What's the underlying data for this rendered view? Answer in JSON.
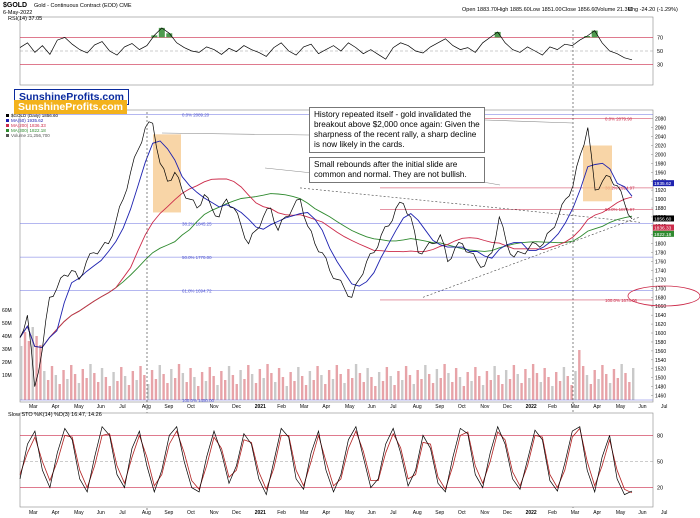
{
  "header": {
    "symbol": "$GOLD",
    "description": "Gold - Continuous Contract (EOD) CME",
    "date": "6-May-2022",
    "open": "Open 1883.70",
    "high": "High 1885.60",
    "low": "Low 1851.00",
    "close": "Close 1856.60",
    "volume": "Volume 21.3M",
    "chg": "Chg -24.20 (-1.29%)"
  },
  "watermark": {
    "line1": "SunshineProfits.com",
    "line2": "SunshineProfits.com"
  },
  "annotations": {
    "a1": "History repeated itself - gold invalidated the breakout above $2,000 once again: Given the sharpness of the recent rally, a sharp decline is now likely in the cards.",
    "a2": "Small rebounds after the initial slide are common and normal. They are not bullish."
  },
  "colors": {
    "price": "#000000",
    "ma50": "#1e22b0",
    "ma200": "#cc2b4a",
    "ma300": "#2f8a2f",
    "rsi": "#000000",
    "stoch_k": "#000000",
    "stoch_d": "#b22222",
    "highlight": "#f5c78a"
  },
  "chart_data": [
    {
      "type": "line",
      "panel": "rsi",
      "legend": "RSI(14) 37.05",
      "y_ticks": [
        "70",
        "50",
        "30"
      ],
      "ylim": [
        0,
        100
      ],
      "values": [
        55,
        62,
        48,
        58,
        45,
        66,
        70,
        60,
        52,
        47,
        59,
        64,
        50,
        44,
        56,
        61,
        52,
        58,
        73,
        84,
        76,
        62,
        55,
        50,
        48,
        56,
        52,
        45,
        54,
        49,
        58,
        52,
        48,
        42,
        55,
        62,
        50,
        44,
        56,
        60,
        46,
        52,
        58,
        50,
        62,
        55,
        46,
        52,
        45,
        38,
        55,
        62,
        58,
        50,
        47,
        56,
        62,
        68,
        58,
        52,
        55,
        48,
        62,
        70,
        78,
        62,
        52,
        48,
        56,
        50,
        44,
        56,
        52,
        60,
        58,
        66,
        72,
        80,
        62,
        50,
        46,
        40,
        37
      ]
    },
    {
      "type": "line",
      "panel": "price",
      "legends": [
        "$GOLD (Daily) 1856.60",
        "MA(50) 1935.62",
        "MA(200) 1836.33",
        "MA(300) 1822.18",
        "Volume 21,256,700"
      ],
      "x_ticks": [
        "Mar",
        "Apr",
        "May",
        "Jun",
        "Jul",
        "Aug",
        "Sep",
        "Oct",
        "Nov",
        "Dec",
        "2021",
        "Feb",
        "Mar",
        "Apr",
        "May",
        "Jun",
        "Jul",
        "Aug",
        "Sep",
        "Oct",
        "Nov",
        "Dec",
        "2022",
        "Feb",
        "Mar",
        "Apr",
        "May",
        "Jun",
        "Jul"
      ],
      "y_ticks": [
        "2080",
        "2060",
        "2040",
        "2020",
        "2000",
        "1980",
        "1960",
        "1940",
        "1920",
        "1900",
        "1880",
        "1860",
        "1840",
        "1820",
        "1800",
        "1780",
        "1760",
        "1740",
        "1720",
        "1700",
        "1680",
        "1660",
        "1640",
        "1620",
        "1600",
        "1580",
        "1560",
        "1540",
        "1520",
        "1500",
        "1480",
        "1460"
      ],
      "volume_ticks": [
        "60M",
        "50M",
        "40M",
        "30M",
        "20M",
        "10M"
      ],
      "ylim": [
        1450,
        2095
      ],
      "price_tags": [
        "1935.62",
        "1856.60",
        "1836.33",
        "1822.18"
      ],
      "fib_left": [
        "0.0% 2089.20",
        "38.2% 1845.25",
        "50.0% 1770.00",
        "61.8% 1694.72",
        "100.0% 1450.00"
      ],
      "fib_right": [
        "0.0% 2079.90",
        "38.2% 1924.97",
        "50.0% 1876.97",
        "100.0% 1674.06"
      ],
      "close": [
        1590,
        1640,
        1480,
        1560,
        1680,
        1700,
        1730,
        1740,
        1720,
        1760,
        1780,
        1790,
        1800,
        1850,
        1900,
        1960,
        2010,
        2060,
        2070,
        1980,
        1940,
        1960,
        1920,
        1900,
        1880,
        1910,
        1880,
        1860,
        1900,
        1880,
        1840,
        1800,
        1830,
        1860,
        1880,
        1830,
        1860,
        1880,
        1900,
        1840,
        1800,
        1780,
        1740,
        1720,
        1700,
        1680,
        1720,
        1760,
        1780,
        1820,
        1840,
        1880,
        1890,
        1860,
        1780,
        1790,
        1800,
        1820,
        1760,
        1790,
        1800,
        1780,
        1760,
        1750,
        1780,
        1860,
        1800,
        1770,
        1780,
        1790,
        1800,
        1800,
        1830,
        1860,
        1900,
        1930,
        2000,
        2060,
        1920,
        1940,
        1950,
        1930,
        1890,
        1856
      ]
    },
    {
      "type": "line",
      "panel": "stochastic",
      "legend": "Slow STO %K(14) %D(3) 16.47, 14.26",
      "y_ticks": [
        "80",
        "50",
        "20"
      ],
      "ylim": [
        0,
        100
      ],
      "k": [
        30,
        70,
        85,
        40,
        20,
        60,
        88,
        75,
        30,
        15,
        55,
        90,
        80,
        35,
        20,
        65,
        85,
        45,
        15,
        40,
        80,
        90,
        50,
        20,
        15,
        55,
        85,
        60,
        25,
        45,
        82,
        70,
        30,
        12,
        50,
        88,
        78,
        30,
        18,
        60,
        85,
        40,
        15,
        35,
        75,
        90,
        55,
        20,
        30,
        70,
        88,
        60,
        22,
        40,
        80,
        65,
        25,
        15,
        55,
        88,
        82,
        35,
        20,
        60,
        90,
        70,
        30,
        18,
        52,
        86,
        75,
        28,
        16,
        48,
        85,
        90,
        40,
        15,
        55,
        80,
        30,
        12,
        16
      ],
      "d": [
        35,
        60,
        78,
        50,
        28,
        50,
        80,
        78,
        40,
        20,
        45,
        80,
        82,
        45,
        25,
        55,
        80,
        55,
        22,
        35,
        70,
        85,
        60,
        28,
        18,
        45,
        78,
        65,
        32,
        40,
        75,
        72,
        38,
        18,
        42,
        80,
        80,
        40,
        22,
        50,
        80,
        50,
        22,
        30,
        65,
        85,
        62,
        28,
        28,
        60,
        82,
        66,
        30,
        35,
        72,
        70,
        32,
        18,
        45,
        80,
        84,
        45,
        25,
        50,
        84,
        75,
        38,
        22,
        45,
        80,
        78,
        35,
        20,
        40,
        78,
        88,
        50,
        22,
        45,
        75,
        40,
        18,
        14
      ]
    }
  ]
}
